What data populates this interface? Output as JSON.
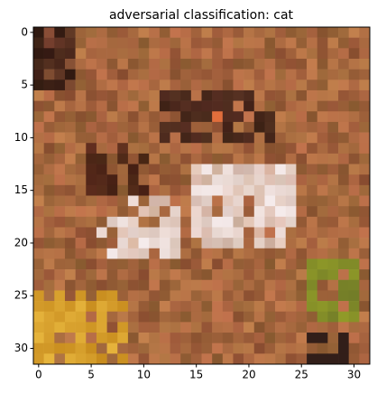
{
  "chart_data": {
    "type": "image",
    "title": "adversarial classification: cat",
    "xlim": [
      -0.5,
      31.5
    ],
    "ylim": [
      31.5,
      -0.5
    ],
    "xticks": [
      0,
      5,
      10,
      15,
      20,
      25,
      30
    ],
    "yticks": [
      0,
      5,
      10,
      15,
      20,
      25,
      30
    ]
  }
}
